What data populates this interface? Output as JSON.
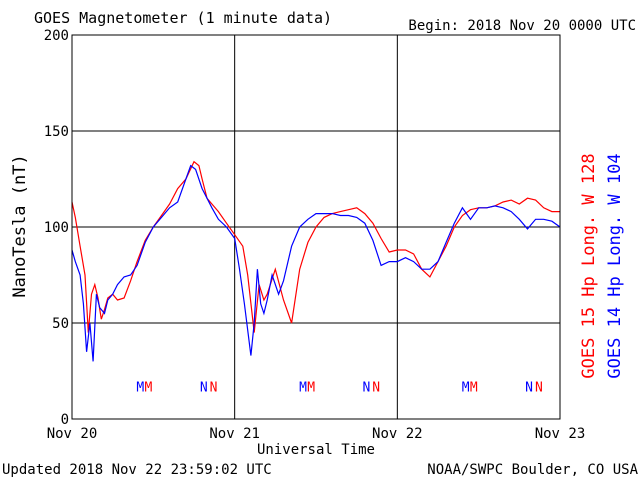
{
  "chart_data": {
    "type": "line",
    "title": "GOES Magnetometer (1 minute data)",
    "begin_label": "Begin:  2018 Nov 20 0000 UTC",
    "ylabel": "NanoTesla (nT)",
    "xlabel": "Universal Time",
    "ylim": [
      0,
      200
    ],
    "xlim": [
      0,
      3
    ],
    "yticks": [
      "0",
      "50",
      "100",
      "150",
      "200"
    ],
    "xtick_labels": [
      "Nov 20",
      "Nov 21",
      "Nov 22",
      "Nov 23"
    ],
    "grid": true,
    "series": [
      {
        "name": "GOES 15 Hp  Long. W 128",
        "color": "#ff0000",
        "x": [
          0.0,
          0.02,
          0.05,
          0.08,
          0.1,
          0.12,
          0.14,
          0.16,
          0.18,
          0.2,
          0.22,
          0.25,
          0.28,
          0.32,
          0.36,
          0.4,
          0.45,
          0.5,
          0.55,
          0.6,
          0.65,
          0.7,
          0.75,
          0.78,
          0.8,
          0.83,
          0.86,
          0.9,
          0.95,
          1.0,
          1.05,
          1.08,
          1.12,
          1.15,
          1.18,
          1.2,
          1.25,
          1.3,
          1.35,
          1.4,
          1.45,
          1.5,
          1.55,
          1.6,
          1.65,
          1.7,
          1.75,
          1.8,
          1.85,
          1.9,
          1.95,
          2.0,
          2.05,
          2.1,
          2.15,
          2.2,
          2.25,
          2.3,
          2.35,
          2.4,
          2.45,
          2.5,
          2.55,
          2.6,
          2.65,
          2.7,
          2.75,
          2.8,
          2.85,
          2.9,
          2.95,
          3.0
        ],
        "y": [
          113,
          105,
          90,
          75,
          45,
          65,
          70,
          63,
          52,
          57,
          63,
          65,
          62,
          63,
          72,
          82,
          93,
          100,
          106,
          112,
          120,
          125,
          134,
          132,
          125,
          115,
          112,
          108,
          102,
          96,
          90,
          75,
          45,
          70,
          62,
          65,
          78,
          62,
          50,
          78,
          92,
          100,
          105,
          107,
          108,
          109,
          110,
          107,
          102,
          94,
          87,
          88,
          88,
          86,
          78,
          74,
          82,
          90,
          100,
          106,
          109,
          110,
          110,
          111,
          113,
          114,
          112,
          115,
          114,
          110,
          108,
          108
        ]
      },
      {
        "name": "GOES 14 Hp  Long. W 104",
        "color": "#0000ff",
        "x": [
          0.0,
          0.02,
          0.05,
          0.07,
          0.09,
          0.11,
          0.13,
          0.15,
          0.17,
          0.2,
          0.22,
          0.25,
          0.28,
          0.32,
          0.36,
          0.4,
          0.45,
          0.5,
          0.55,
          0.6,
          0.65,
          0.7,
          0.73,
          0.76,
          0.8,
          0.83,
          0.86,
          0.9,
          0.95,
          1.0,
          1.03,
          1.06,
          1.1,
          1.12,
          1.14,
          1.16,
          1.18,
          1.2,
          1.23,
          1.27,
          1.3,
          1.35,
          1.4,
          1.45,
          1.5,
          1.55,
          1.6,
          1.65,
          1.7,
          1.75,
          1.8,
          1.85,
          1.9,
          1.95,
          2.0,
          2.05,
          2.1,
          2.15,
          2.2,
          2.25,
          2.3,
          2.35,
          2.4,
          2.45,
          2.5,
          2.55,
          2.6,
          2.65,
          2.7,
          2.75,
          2.8,
          2.85,
          2.9,
          2.95,
          3.0
        ],
        "y": [
          88,
          82,
          75,
          60,
          35,
          50,
          30,
          65,
          58,
          55,
          62,
          65,
          70,
          74,
          75,
          80,
          92,
          100,
          105,
          110,
          113,
          125,
          132,
          130,
          120,
          115,
          110,
          104,
          100,
          94,
          78,
          60,
          33,
          50,
          78,
          60,
          55,
          62,
          75,
          65,
          72,
          90,
          100,
          104,
          107,
          107,
          107,
          106,
          106,
          105,
          102,
          93,
          80,
          82,
          82,
          84,
          82,
          78,
          78,
          82,
          92,
          102,
          110,
          104,
          110,
          110,
          111,
          110,
          108,
          104,
          99,
          104,
          104,
          103,
          100
        ]
      }
    ],
    "markers": [
      {
        "label": "M",
        "color": "#0000ff",
        "x": 0.42
      },
      {
        "label": "M",
        "color": "#ff0000",
        "x": 0.47
      },
      {
        "label": "N",
        "color": "#0000ff",
        "x": 0.81
      },
      {
        "label": "N",
        "color": "#ff0000",
        "x": 0.87
      },
      {
        "label": "M",
        "color": "#0000ff",
        "x": 1.42
      },
      {
        "label": "M",
        "color": "#ff0000",
        "x": 1.47
      },
      {
        "label": "N",
        "color": "#0000ff",
        "x": 1.81
      },
      {
        "label": "N",
        "color": "#ff0000",
        "x": 1.87
      },
      {
        "label": "M",
        "color": "#0000ff",
        "x": 2.42
      },
      {
        "label": "M",
        "color": "#ff0000",
        "x": 2.47
      },
      {
        "label": "N",
        "color": "#0000ff",
        "x": 2.81
      },
      {
        "label": "N",
        "color": "#ff0000",
        "x": 2.87
      }
    ],
    "marker_level": 17
  },
  "footer": {
    "updated": "Updated 2018 Nov 22 23:59:02 UTC",
    "source": "NOAA/SWPC Boulder, CO USA"
  }
}
